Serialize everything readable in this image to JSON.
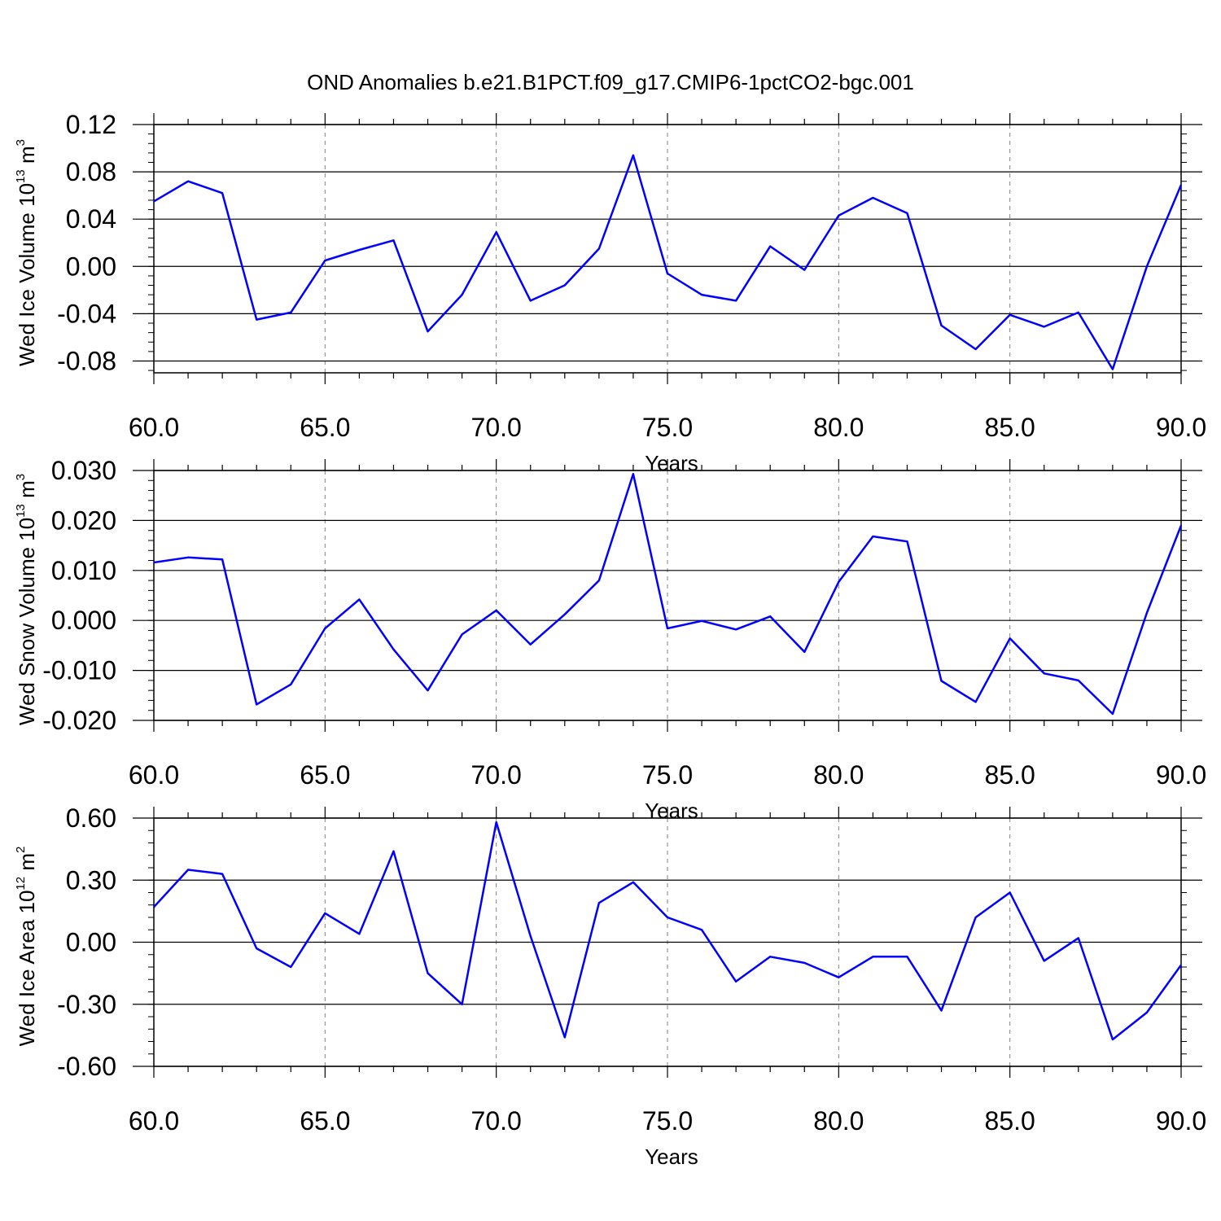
{
  "title": "OND Anomalies b.e21.B1PCT.f09_g17.CMIP6-1pctCO2-bgc.001",
  "colors": {
    "line": "#0000ff",
    "axis": "#000000",
    "grid": "#808080"
  },
  "chart_data": [
    {
      "type": "line",
      "xlabel": "Years",
      "ylabel": {
        "text": "Wed Ice Volume 10",
        "exp": "13",
        "unit": " m",
        "unit_exp": "3"
      },
      "xlim": [
        60,
        90
      ],
      "ylim": [
        -0.09,
        0.12
      ],
      "xticks": [
        60,
        65,
        70,
        75,
        80,
        85,
        90
      ],
      "xtick_labels": [
        "60.0",
        "65.0",
        "70.0",
        "75.0",
        "80.0",
        "85.0",
        "90.0"
      ],
      "yticks": [
        -0.08,
        -0.04,
        0.0,
        0.04,
        0.08,
        0.12
      ],
      "ytick_labels": [
        "-0.08",
        "-0.04",
        "0.00",
        "0.04",
        "0.08",
        "0.12"
      ],
      "x": [
        60,
        61,
        62,
        63,
        64,
        65,
        66,
        67,
        68,
        69,
        70,
        71,
        72,
        73,
        74,
        75,
        76,
        77,
        78,
        79,
        80,
        81,
        82,
        83,
        84,
        85,
        86,
        87,
        88,
        89,
        90
      ],
      "values": [
        0.055,
        0.072,
        0.062,
        -0.045,
        -0.039,
        0.005,
        0.014,
        0.022,
        -0.055,
        -0.024,
        0.029,
        -0.029,
        -0.016,
        0.015,
        0.094,
        -0.006,
        -0.024,
        -0.029,
        0.017,
        -0.003,
        0.043,
        0.058,
        0.045,
        -0.05,
        -0.07,
        -0.041,
        -0.051,
        -0.039,
        -0.087,
        0.0,
        0.069
      ]
    },
    {
      "type": "line",
      "xlabel": "Years",
      "ylabel": {
        "text": "Wed Snow Volume 10",
        "exp": "13",
        "unit": " m",
        "unit_exp": "3"
      },
      "xlim": [
        60,
        90
      ],
      "ylim": [
        -0.02,
        0.03
      ],
      "xticks": [
        60,
        65,
        70,
        75,
        80,
        85,
        90
      ],
      "xtick_labels": [
        "60.0",
        "65.0",
        "70.0",
        "75.0",
        "80.0",
        "85.0",
        "90.0"
      ],
      "yticks": [
        -0.02,
        -0.01,
        0.0,
        0.01,
        0.02,
        0.03
      ],
      "ytick_labels": [
        "-0.020",
        "-0.010",
        "0.000",
        "0.010",
        "0.020",
        "0.030"
      ],
      "x": [
        60,
        61,
        62,
        63,
        64,
        65,
        66,
        67,
        68,
        69,
        70,
        71,
        72,
        73,
        74,
        75,
        76,
        77,
        78,
        79,
        80,
        81,
        82,
        83,
        84,
        85,
        86,
        87,
        88,
        89,
        90
      ],
      "values": [
        0.0116,
        0.0126,
        0.0122,
        -0.0168,
        -0.0128,
        -0.0016,
        0.0042,
        -0.0058,
        -0.014,
        -0.0028,
        0.002,
        -0.0048,
        0.0012,
        0.008,
        0.0293,
        -0.0016,
        -0.0001,
        -0.0018,
        0.0008,
        -0.0063,
        0.0077,
        0.0168,
        0.0158,
        -0.0121,
        -0.0163,
        -0.0036,
        -0.0106,
        -0.012,
        -0.0187,
        0.0015,
        0.019
      ]
    },
    {
      "type": "line",
      "xlabel": "Years",
      "ylabel": {
        "text": "Wed Ice Area 10",
        "exp": "12",
        "unit": " m",
        "unit_exp": "2"
      },
      "xlim": [
        60,
        90
      ],
      "ylim": [
        -0.6,
        0.6
      ],
      "xticks": [
        60,
        65,
        70,
        75,
        80,
        85,
        90
      ],
      "xtick_labels": [
        "60.0",
        "65.0",
        "70.0",
        "75.0",
        "80.0",
        "85.0",
        "90.0"
      ],
      "yticks": [
        -0.6,
        -0.3,
        0.0,
        0.3,
        0.6
      ],
      "ytick_labels": [
        "-0.60",
        "-0.30",
        "0.00",
        "0.30",
        "0.60"
      ],
      "x": [
        60,
        61,
        62,
        63,
        64,
        65,
        66,
        67,
        68,
        69,
        70,
        71,
        72,
        73,
        74,
        75,
        76,
        77,
        78,
        79,
        80,
        81,
        82,
        83,
        84,
        85,
        86,
        87,
        88,
        89,
        90
      ],
      "values": [
        0.17,
        0.35,
        0.33,
        -0.03,
        -0.12,
        0.14,
        0.04,
        0.44,
        -0.15,
        -0.3,
        0.58,
        0.03,
        -0.46,
        0.19,
        0.29,
        0.12,
        0.06,
        -0.19,
        -0.07,
        -0.1,
        -0.17,
        -0.07,
        -0.07,
        -0.33,
        0.12,
        0.24,
        -0.09,
        0.02,
        -0.47,
        -0.34,
        -0.11
      ]
    }
  ]
}
